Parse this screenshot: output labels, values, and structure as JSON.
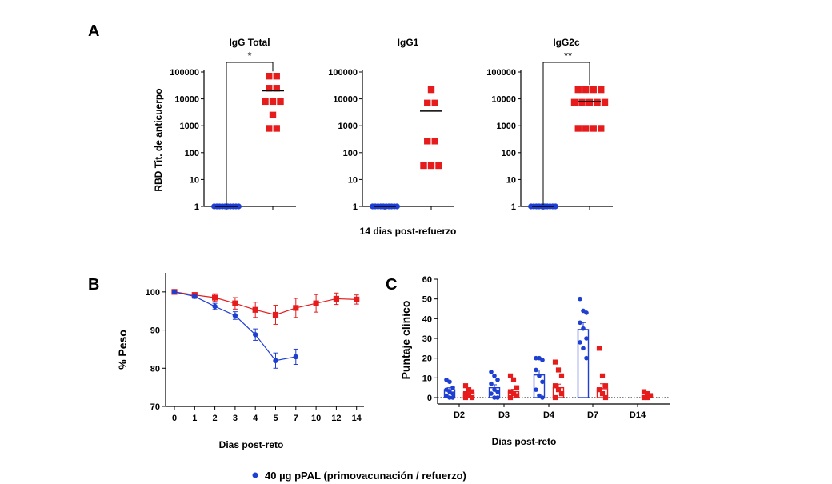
{
  "colors": {
    "group1": "#1f3fd1",
    "group2": "#e61c1c",
    "axis": "#000000"
  },
  "legend": {
    "label": "40 µg pPAL (primovacunación / refuerzo)",
    "color": "#1f3fd1"
  },
  "chart_data": [
    {
      "panel": "A",
      "type": "scatter",
      "title": "IgG Total",
      "ylabel": "RBD Tit. de anticuerpo",
      "xlabel": "",
      "yscale": "log",
      "ylim": [
        1,
        100000
      ],
      "yticks": [
        "1",
        "10",
        "100",
        "1000",
        "10000",
        "100000"
      ],
      "significance": "*",
      "groups": [
        {
          "color": "#1f3fd1",
          "marker": "circle",
          "values": [
            1,
            1,
            1,
            1,
            1,
            1,
            1,
            1,
            1,
            1
          ],
          "mean": 1
        },
        {
          "color": "#e61c1c",
          "marker": "square",
          "values": [
            70000,
            70000,
            25000,
            25000,
            8000,
            8000,
            8000,
            2500,
            800,
            800
          ],
          "mean": 20000
        }
      ]
    },
    {
      "panel": "A",
      "type": "scatter",
      "title": "IgG1",
      "ylabel": "",
      "xlabel": "14 dias post-refuerzo",
      "yscale": "log",
      "ylim": [
        1,
        100000
      ],
      "yticks": [
        "1",
        "10",
        "100",
        "1000",
        "10000",
        "100000"
      ],
      "significance": "",
      "groups": [
        {
          "color": "#1f3fd1",
          "marker": "circle",
          "values": [
            1,
            1,
            1,
            1,
            1,
            1,
            1,
            1,
            1,
            1
          ],
          "mean": 1
        },
        {
          "color": "#e61c1c",
          "marker": "square",
          "values": [
            22000,
            7000,
            7000,
            270,
            270,
            33,
            33,
            33
          ],
          "mean": 3500
        }
      ]
    },
    {
      "panel": "A",
      "type": "scatter",
      "title": "IgG2c",
      "ylabel": "",
      "xlabel": "",
      "yscale": "log",
      "ylim": [
        1,
        100000
      ],
      "yticks": [
        "1",
        "10",
        "100",
        "1000",
        "10000",
        "100000"
      ],
      "significance": "**",
      "groups": [
        {
          "color": "#1f3fd1",
          "marker": "circle",
          "values": [
            1,
            1,
            1,
            1,
            1,
            1,
            1,
            1,
            1,
            1
          ],
          "mean": 1
        },
        {
          "color": "#e61c1c",
          "marker": "square",
          "values": [
            22000,
            22000,
            22000,
            22000,
            7500,
            7500,
            7500,
            7500,
            7500,
            800,
            800,
            800,
            800
          ],
          "mean": 8000
        }
      ]
    },
    {
      "panel": "B",
      "type": "line",
      "title": "",
      "xlabel": "Dias post-reto",
      "ylabel": "% Peso",
      "ylim": [
        70,
        105
      ],
      "yticks": [
        "70",
        "80",
        "90",
        "100"
      ],
      "x": [
        "0",
        "1",
        "2",
        "3",
        "4",
        "5",
        "7",
        "10",
        "12",
        "14"
      ],
      "series": [
        {
          "color": "#1f3fd1",
          "marker": "circle",
          "values": [
            100,
            98.8,
            96.2,
            93.8,
            88.8,
            82,
            83,
            null,
            null,
            null
          ],
          "error": [
            0,
            0.5,
            0.8,
            1,
            1.5,
            2,
            2,
            null,
            null,
            null
          ]
        },
        {
          "color": "#e61c1c",
          "marker": "square",
          "values": [
            100,
            99.2,
            98.5,
            97,
            95.3,
            94,
            95.8,
            97,
            98.2,
            98
          ],
          "error": [
            0,
            0.5,
            1,
            1.5,
            2,
            2.5,
            2.5,
            2.3,
            1.5,
            1.2
          ]
        }
      ]
    },
    {
      "panel": "C",
      "type": "bar",
      "title": "",
      "xlabel": "Dias post-reto",
      "ylabel": "Puntaje clínico",
      "ylim": [
        0,
        60
      ],
      "yticks": [
        "0",
        "10",
        "20",
        "30",
        "40",
        "50",
        "60"
      ],
      "categories": [
        "D2",
        "D3",
        "D4",
        "D7",
        "D14"
      ],
      "series": [
        {
          "color": "#1f3fd1",
          "marker": "circle",
          "values": [
            4,
            5,
            11.5,
            34.5,
            null
          ],
          "error": [
            1,
            1.5,
            2.5,
            3.5,
            null
          ],
          "points": [
            [
              9,
              8,
              5,
              4,
              3,
              2,
              1,
              0,
              0
            ],
            [
              13,
              11,
              9,
              7,
              4,
              3,
              2,
              0,
              0
            ],
            [
              20,
              20,
              19,
              14,
              11,
              8,
              4,
              1,
              0
            ],
            [
              50,
              44,
              43,
              38,
              35,
              30,
              28,
              25,
              20
            ]
          ]
        },
        {
          "color": "#e61c1c",
          "marker": "square",
          "values": [
            2.5,
            3,
            5,
            4.5,
            1
          ],
          "error": [
            1,
            1.2,
            1.8,
            2.5,
            0.5
          ],
          "points": [
            [
              6,
              4,
              3,
              2,
              1,
              0,
              0
            ],
            [
              11,
              9,
              5,
              3,
              2,
              1,
              0
            ],
            [
              18,
              14,
              11,
              6,
              4,
              2,
              0
            ],
            [
              25,
              11,
              6,
              4,
              2,
              0
            ],
            [
              3,
              2,
              1,
              0,
              0
            ]
          ]
        }
      ]
    }
  ]
}
